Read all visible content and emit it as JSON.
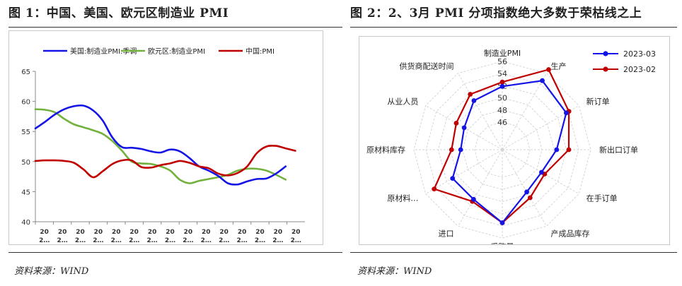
{
  "left": {
    "title": "图 1：中国、美国、欧元区制造业 PMI",
    "source": "资料来源：WIND"
  },
  "right": {
    "title": "图 2：2、3月 PMI 分项指数绝大多数于荣枯线之上",
    "source": "资料来源：WIND"
  },
  "chart_data": [
    {
      "type": "line",
      "title": "",
      "ylim": [
        40,
        65
      ],
      "yticks": [
        40,
        45,
        50,
        55,
        60,
        65
      ],
      "xticklabels": [
        "20\n2…",
        "20\n2…",
        "20\n2…",
        "20\n2…",
        "20\n2…",
        "20\n2…",
        "20\n2…",
        "20\n2…",
        "20\n2…",
        "20\n2…",
        "20\n2…",
        "20\n2…",
        "20\n2…",
        "20\n2…",
        "20\n2…"
      ],
      "grid": false,
      "legend_position": "top",
      "x": [
        0,
        1,
        2,
        3,
        4,
        5,
        6,
        7,
        8,
        9,
        10,
        11,
        12,
        13,
        14,
        15,
        16,
        17,
        18,
        19,
        20,
        21,
        22,
        23,
        24,
        25,
        26,
        27,
        28
      ],
      "series": [
        {
          "name": "美国:制造业PMI:季调",
          "color": "#1414e6",
          "values": [
            55.5,
            56.6,
            57.8,
            58.7,
            59.2,
            59.3,
            58.5,
            56.8,
            54.0,
            52.4,
            52.3,
            52.1,
            51.7,
            51.5,
            52.0,
            51.7,
            50.6,
            49.2,
            48.5,
            47.6,
            46.4,
            46.2,
            46.7,
            47.1,
            47.2,
            48.0,
            49.2,
            null,
            null
          ]
        },
        {
          "name": "欧元区:制造业PMI",
          "color": "#73b13d",
          "values": [
            58.7,
            58.6,
            58.2,
            57.1,
            56.2,
            55.7,
            55.2,
            54.6,
            53.4,
            51.8,
            50.0,
            49.7,
            49.6,
            49.2,
            48.5,
            47.0,
            46.4,
            46.8,
            47.1,
            47.4,
            47.8,
            48.5,
            48.8,
            48.8,
            48.5,
            47.8,
            47.0,
            null,
            null
          ]
        },
        {
          "name": "中国:PMI",
          "color": "#c00000",
          "values": [
            50.1,
            50.2,
            50.2,
            50.1,
            49.8,
            48.7,
            47.4,
            48.4,
            49.6,
            50.2,
            50.2,
            49.1,
            49.0,
            49.4,
            49.7,
            50.1,
            49.8,
            49.2,
            48.9,
            48.0,
            47.7,
            48.1,
            49.2,
            51.4,
            52.5,
            52.6,
            52.2,
            51.8,
            null
          ]
        }
      ]
    },
    {
      "type": "radar",
      "title": "",
      "rlim": [
        46,
        56
      ],
      "rticks": [
        46,
        48,
        50,
        52,
        54,
        56
      ],
      "legend_position": "top-right",
      "categories": [
        "制造业PMI",
        "生产",
        "新订单",
        "新出口订单",
        "在手订单",
        "产成品库存",
        "采购量",
        "进口",
        "原材料…",
        "原材料库存",
        "从业人员",
        "供货商配送时间"
      ],
      "series": [
        {
          "name": "2023-03",
          "color": "#1414e6",
          "values": [
            51.9,
            54.6,
            53.6,
            50.4,
            48.9,
            49.5,
            53.5,
            50.9,
            50.9,
            48.3,
            48.7,
            50.8
          ]
        },
        {
          "name": "2023-02",
          "color": "#c00000",
          "values": [
            52.6,
            56.7,
            54.1,
            52.4,
            49.5,
            50.6,
            53.5,
            51.3,
            54.4,
            49.8,
            50.2,
            52.0
          ]
        }
      ]
    }
  ]
}
